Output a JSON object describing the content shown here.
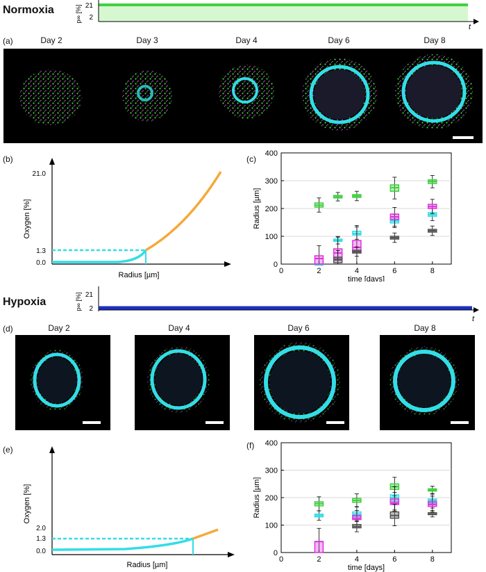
{
  "normoxia": {
    "title": "Normoxia",
    "oxygen_axis": {
      "label": "p∞ [%]",
      "ticks": [
        "21",
        "2"
      ],
      "x_label": "t"
    },
    "panel_a": {
      "letter": "(a)",
      "days": [
        "Day 2",
        "Day 3",
        "Day 4",
        "Day 6",
        "Day 8"
      ]
    },
    "panel_b": {
      "letter": "(b)",
      "ylabel": "Oxygen [%]",
      "xlabel": "Radius [µm]",
      "yticks": [
        "21.0",
        "1.3",
        "0.0"
      ]
    },
    "panel_c": {
      "letter": "(c)"
    }
  },
  "hypoxia": {
    "title": "Hypoxia",
    "oxygen_axis": {
      "label": "p∞ [%]",
      "ticks": [
        "21",
        "2"
      ],
      "x_label": "t"
    },
    "panel_d": {
      "letter": "(d)",
      "days": [
        "Day 2",
        "Day 4",
        "Day 6",
        "Day 8"
      ]
    },
    "panel_e": {
      "letter": "(e)",
      "ylabel": "Oxygen [%]",
      "xlabel": "Radius [µm]",
      "yticks": [
        "2.0",
        "1.3",
        "0.0"
      ]
    },
    "panel_f": {
      "letter": "(f)"
    }
  },
  "colors": {
    "green": "#3fd13f",
    "cyan": "#33dde6",
    "magenta": "#dd33dd",
    "gray": "#555555",
    "orange": "#f5a93a",
    "blue": "#1f2fbf",
    "lightgreen": "#d6f7d0"
  },
  "chart_data": [
    {
      "type": "box",
      "panel": "(c)",
      "xlabel": "time [days]",
      "ylabel": "Radius [µm]",
      "xlim": [
        0,
        9
      ],
      "ylim": [
        0,
        400
      ],
      "xticks": [
        0,
        2,
        4,
        6,
        8
      ],
      "yticks": [
        0,
        100,
        200,
        300,
        400
      ],
      "grid": true,
      "series": [
        {
          "color": "green",
          "x": [
            2,
            3,
            4,
            6,
            8
          ],
          "median": [
            212,
            242,
            245,
            275,
            297
          ],
          "q1": [
            205,
            238,
            240,
            262,
            290
          ],
          "q3": [
            220,
            247,
            250,
            285,
            303
          ]
        },
        {
          "color": "cyan",
          "x": [
            2,
            3,
            4,
            6,
            8
          ],
          "median": [
            0,
            85,
            110,
            155,
            178
          ],
          "q1": [
            0,
            82,
            105,
            148,
            172
          ],
          "q3": [
            0,
            90,
            118,
            162,
            185
          ]
        },
        {
          "color": "magenta",
          "x": [
            2,
            3,
            4,
            6,
            8
          ],
          "median": [
            20,
            40,
            60,
            170,
            207
          ],
          "q1": [
            0,
            20,
            40,
            160,
            200
          ],
          "q3": [
            30,
            55,
            85,
            180,
            215
          ]
        },
        {
          "color": "gray",
          "x": [
            3,
            4,
            6,
            8
          ],
          "median": [
            15,
            45,
            95,
            120
          ],
          "q1": [
            5,
            40,
            90,
            115
          ],
          "q3": [
            25,
            50,
            100,
            125
          ]
        }
      ]
    },
    {
      "type": "box",
      "panel": "(f)",
      "xlabel": "time [days]",
      "ylabel": "Radius [µm]",
      "xlim": [
        0,
        9
      ],
      "ylim": [
        0,
        400
      ],
      "xticks": [
        0,
        2,
        4,
        6,
        8
      ],
      "yticks": [
        0,
        100,
        200,
        300,
        400
      ],
      "grid": true,
      "series": [
        {
          "color": "green",
          "x": [
            2,
            4,
            6,
            8
          ],
          "median": [
            178,
            190,
            240,
            228
          ],
          "q1": [
            170,
            183,
            230,
            224
          ],
          "q3": [
            185,
            197,
            250,
            232
          ]
        },
        {
          "color": "cyan",
          "x": [
            2,
            4,
            6,
            8
          ],
          "median": [
            135,
            140,
            200,
            190
          ],
          "q1": [
            130,
            132,
            185,
            180
          ],
          "q3": [
            140,
            148,
            210,
            195
          ]
        },
        {
          "color": "magenta",
          "x": [
            2,
            4,
            6,
            8
          ],
          "median": [
            40,
            125,
            180,
            175
          ],
          "q1": [
            0,
            120,
            175,
            168
          ],
          "q3": [
            40,
            135,
            195,
            185
          ]
        },
        {
          "color": "gray",
          "x": [
            4,
            6,
            8
          ],
          "median": [
            95,
            135,
            140
          ],
          "q1": [
            90,
            125,
            138
          ],
          "q3": [
            102,
            148,
            145
          ]
        }
      ]
    }
  ]
}
